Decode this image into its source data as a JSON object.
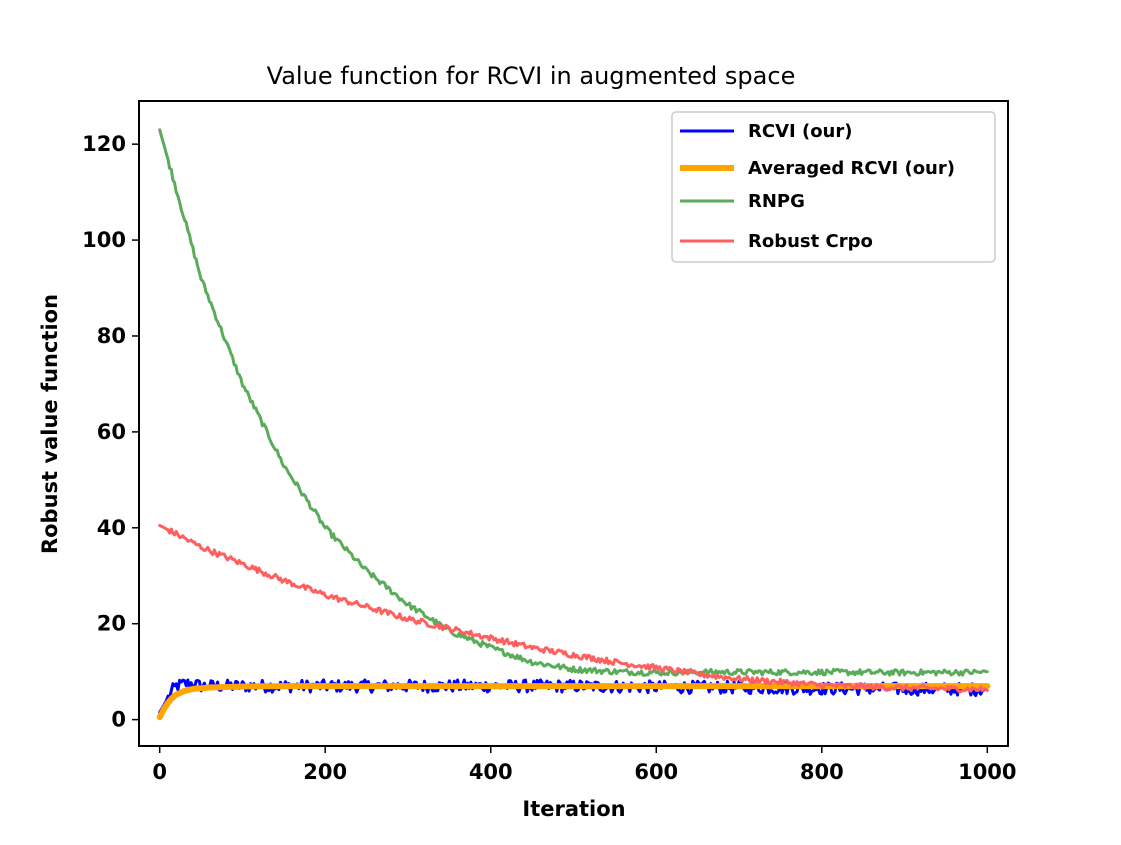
{
  "chart_data": {
    "type": "line",
    "title": "Value function for RCVI in augmented space",
    "xlabel": "Iteration",
    "ylabel": "Robust value function",
    "xlim": [
      -25,
      1025
    ],
    "ylim": [
      -5.5,
      129
    ],
    "xticks": [
      0,
      200,
      400,
      600,
      800,
      1000
    ],
    "yticks": [
      0,
      20,
      40,
      60,
      80,
      100,
      120
    ],
    "grid": false,
    "legend_position": "top-right",
    "series": [
      {
        "name": "RCVI (our)",
        "color": "#0000ff",
        "line_width": 3,
        "x": [
          0,
          5,
          10,
          15,
          20,
          30,
          40,
          50,
          75,
          100,
          150,
          200,
          300,
          400,
          500,
          600,
          700,
          800,
          900,
          1000
        ],
        "y": [
          1.5,
          3.0,
          4.5,
          6.0,
          7.0,
          7.5,
          7.5,
          7.0,
          7.0,
          7.0,
          7.0,
          7.0,
          7.0,
          7.0,
          7.0,
          6.8,
          6.7,
          6.5,
          6.4,
          6.3
        ],
        "noise": 1.3
      },
      {
        "name": "Averaged RCVI (our)",
        "color": "#ffa500",
        "line_width": 6,
        "x": [
          0,
          3,
          6,
          10,
          15,
          20,
          30,
          40,
          60,
          80,
          100,
          150,
          200,
          300,
          400,
          500,
          600,
          700,
          800,
          900,
          1000
        ],
        "y": [
          0.5,
          1.5,
          2.5,
          3.5,
          4.5,
          5.2,
          6.0,
          6.4,
          6.7,
          6.8,
          6.9,
          7.0,
          7.0,
          7.0,
          7.0,
          7.0,
          7.0,
          7.0,
          7.0,
          7.0,
          7.0
        ],
        "noise": 0
      },
      {
        "name": "RNPG",
        "color": "#5aab5a",
        "line_width": 3,
        "x": [
          0,
          50,
          100,
          150,
          200,
          250,
          300,
          350,
          400,
          450,
          500,
          550,
          600,
          650,
          700,
          800,
          900,
          1000
        ],
        "y": [
          123,
          92,
          70,
          53,
          40,
          31,
          24,
          18.5,
          15,
          12,
          10.5,
          10,
          9.8,
          9.9,
          9.9,
          9.9,
          9.8,
          9.9
        ],
        "noise": 0.6
      },
      {
        "name": "Robust Crpo",
        "color": "#ff5f5f",
        "line_width": 3,
        "x": [
          0,
          50,
          100,
          150,
          200,
          250,
          300,
          350,
          400,
          450,
          500,
          550,
          600,
          650,
          700,
          800,
          900,
          1000
        ],
        "y": [
          40.5,
          36,
          32.5,
          29,
          26,
          23.5,
          21,
          19,
          17,
          15,
          13.5,
          12,
          10.8,
          9.5,
          8.5,
          7.2,
          6.6,
          6.3
        ],
        "noise": 0.6
      }
    ]
  }
}
